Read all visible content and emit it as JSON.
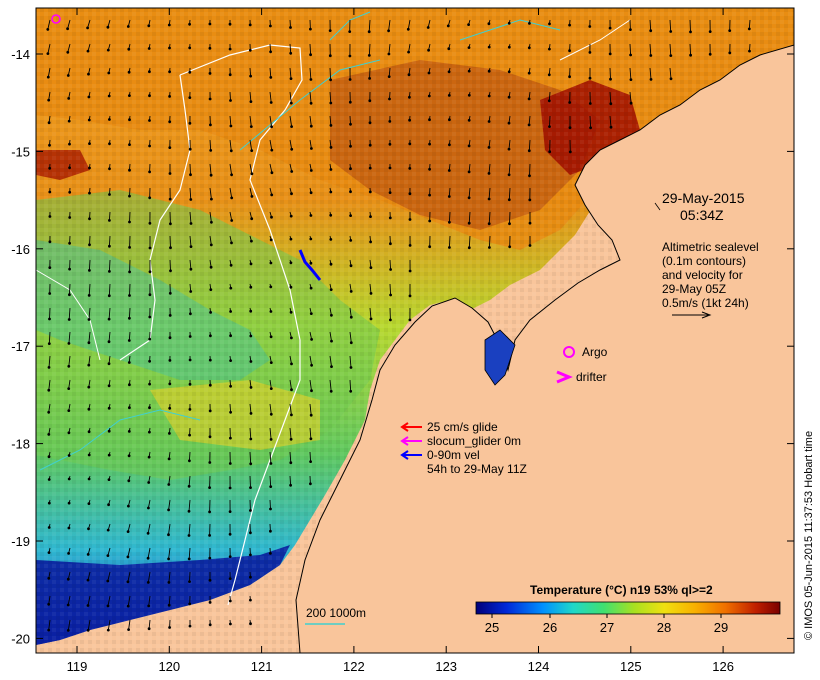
{
  "map": {
    "date_label": "29-May-2015",
    "time_label": "05:34Z",
    "altimetry_lines": [
      "Altimetric sealevel",
      "(0.1m contours)",
      "and velocity for",
      "29-May 05Z",
      "0.5m/s (1kt 24h)"
    ],
    "legend": {
      "argo": "Argo",
      "drifter": "drifter",
      "glide": "25 cm/s glide",
      "slocum": "slocum_glider 0m",
      "vel": "0-90m vel",
      "period": "54h to 29-May 11Z"
    },
    "depth_scale_label": "200  1000m",
    "colorbar": {
      "title": "Temperature (°C) n19 53% ql>=2",
      "ticks": [
        "25",
        "26",
        "27",
        "28",
        "29"
      ]
    },
    "credit": "© IMOS 05-Jun-2015 11:37:53 Hobart time",
    "x_ticks": [
      "119",
      "120",
      "121",
      "122",
      "123",
      "124",
      "125",
      "126"
    ],
    "y_ticks": [
      "-14",
      "-15",
      "-16",
      "-17",
      "-18",
      "-19",
      "-20"
    ],
    "colors": {
      "land": "#f9c59b",
      "vector": "#000000",
      "argo": "#ff00ff",
      "drifter": "#ff00ff",
      "glide": "#ff0000",
      "slocum": "#ff00ff",
      "vel": "#0000ff",
      "contour_white": "#ffffff",
      "contour_cyan": "#40d0d0"
    }
  }
}
